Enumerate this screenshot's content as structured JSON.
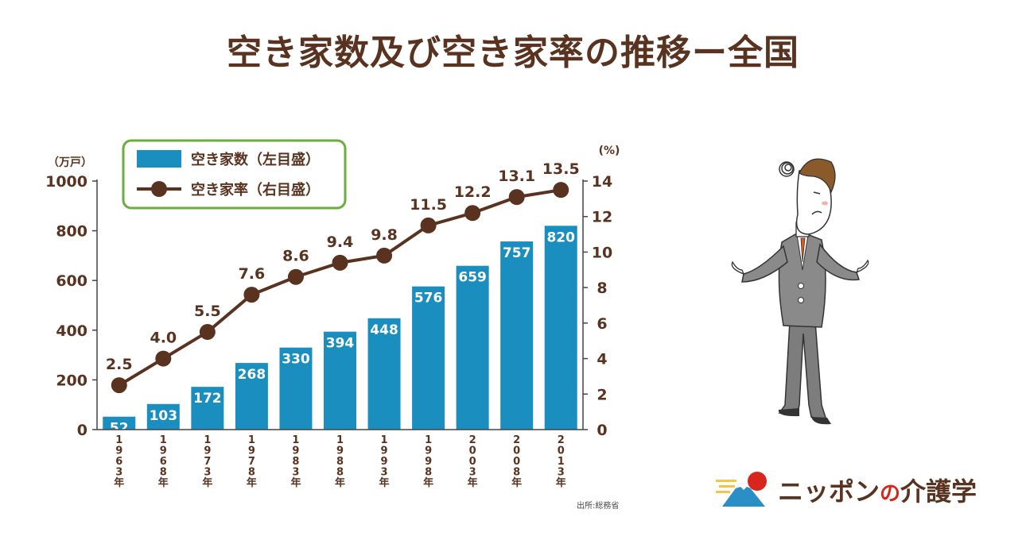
{
  "title": "空き家数及び空き家率の推移ー全国",
  "source": "出所:総務省",
  "logo": {
    "part1": "ニッポン",
    "part2": "の",
    "part3": "介護学"
  },
  "chart_data": {
    "type": "bar+line",
    "categories": [
      "1963年",
      "1968年",
      "1973年",
      "1978年",
      "1983年",
      "1988年",
      "1993年",
      "1998年",
      "2003年",
      "2008年",
      "2013年"
    ],
    "series": [
      {
        "name": "空き家数（左目盛）",
        "type": "bar",
        "axis": "left",
        "values": [
          52,
          103,
          172,
          268,
          330,
          394,
          448,
          576,
          659,
          757,
          820
        ],
        "color": "#1a8fbf"
      },
      {
        "name": "空き家率（右目盛）",
        "type": "line",
        "axis": "right",
        "values": [
          2.5,
          4.0,
          5.5,
          7.6,
          8.6,
          9.4,
          9.8,
          11.5,
          12.2,
          13.1,
          13.5
        ],
        "color": "#5a3320"
      }
    ],
    "value_labels_right": [
      "2.5",
      "4.0",
      "5.5",
      "7.6",
      "8.6",
      "9.4",
      "9.8",
      "11.5",
      "12.2",
      "13.1",
      "13.5"
    ],
    "y_left": {
      "unit": "（万戸）",
      "range": [
        0,
        1000
      ],
      "ticks": [
        "0",
        "200",
        "400",
        "600",
        "800",
        "1000"
      ]
    },
    "y_right": {
      "unit": "(%)",
      "range": [
        0,
        14
      ],
      "ticks": [
        "0",
        "2",
        "4",
        "6",
        "8",
        "10",
        "12",
        "14"
      ]
    },
    "legend_position": "top-left",
    "grid": false
  }
}
